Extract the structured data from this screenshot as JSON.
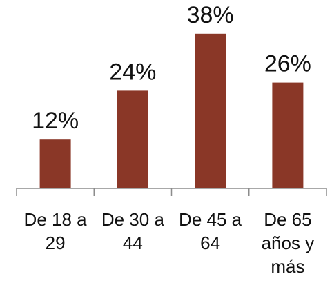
{
  "colors": {
    "bar": "#8a3727",
    "axis": "#8c8c8c",
    "text": "#111111"
  },
  "chart_data": {
    "type": "bar",
    "categories": [
      [
        "De 18 a",
        "29"
      ],
      [
        "De 30 a",
        "44"
      ],
      [
        "De 45 a",
        "64"
      ],
      [
        "De 65",
        "años y",
        "más"
      ]
    ],
    "values": [
      12,
      24,
      38,
      26
    ],
    "value_labels": [
      "12%",
      "24%",
      "38%",
      "26%"
    ],
    "ylim": [
      0,
      40
    ],
    "grid": false,
    "legend": "none"
  }
}
